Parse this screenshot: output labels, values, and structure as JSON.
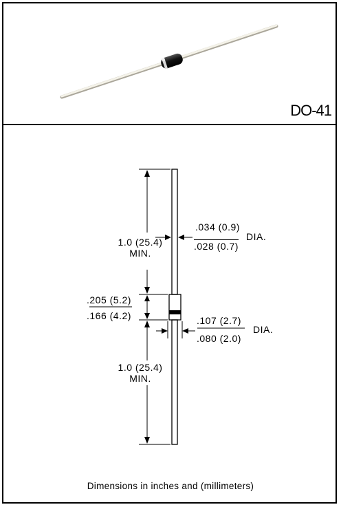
{
  "package": {
    "name": "DO-41"
  },
  "dimensions": {
    "lead_length": {
      "line1": "1.0 (25.4)",
      "line2": "MIN."
    },
    "lead_diameter": {
      "max": ".034 (0.9)",
      "min": ".028 (0.7)",
      "suffix": "DIA."
    },
    "body_length": {
      "max": ".205 (5.2)",
      "min": ".166 (4.2)"
    },
    "body_diameter": {
      "max": ".107 (2.7)",
      "min": ".080 (2.0)",
      "suffix": "DIA."
    },
    "lead_length_bottom": {
      "line1": "1.0 (25.4)",
      "line2": "MIN."
    }
  },
  "footer": {
    "note": "Dimensions in inches and (millimeters)"
  }
}
